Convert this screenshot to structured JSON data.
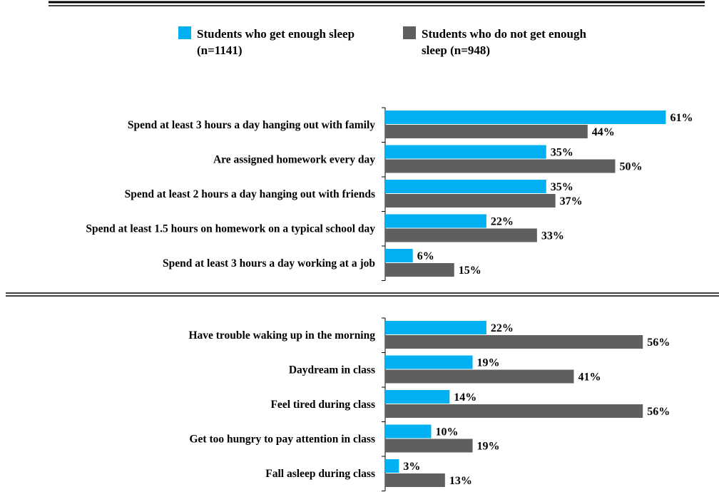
{
  "chart_data": {
    "type": "bar",
    "orientation": "horizontal",
    "legend_position": "top",
    "grid": false,
    "xlim": [
      0,
      100
    ],
    "series": [
      {
        "name": "Students who get enough sleep (n=1141)",
        "color": "#00b0f0"
      },
      {
        "name": "Students who do not get enough sleep (n=948)",
        "color": "#5f5f5f"
      }
    ],
    "groups": [
      {
        "categories": [
          "Spend at least 3 hours a day hanging out with family",
          "Are assigned homework every day",
          "Spend at least 2 hours a day hanging out with friends",
          "Spend at least 1.5 hours on homework on a typical school day",
          "Spend at least 3 hours a day working at a job"
        ],
        "values": [
          [
            61,
            44
          ],
          [
            35,
            50
          ],
          [
            35,
            37
          ],
          [
            22,
            33
          ],
          [
            6,
            15
          ]
        ]
      },
      {
        "categories": [
          "Have trouble waking up in the morning",
          "Daydream in class",
          "Feel tired during class",
          "Get too hungry to pay attention in class",
          "Fall asleep during class"
        ],
        "values": [
          [
            22,
            56
          ],
          [
            19,
            41
          ],
          [
            14,
            56
          ],
          [
            10,
            19
          ],
          [
            3,
            13
          ]
        ]
      }
    ],
    "value_suffix": "%"
  }
}
